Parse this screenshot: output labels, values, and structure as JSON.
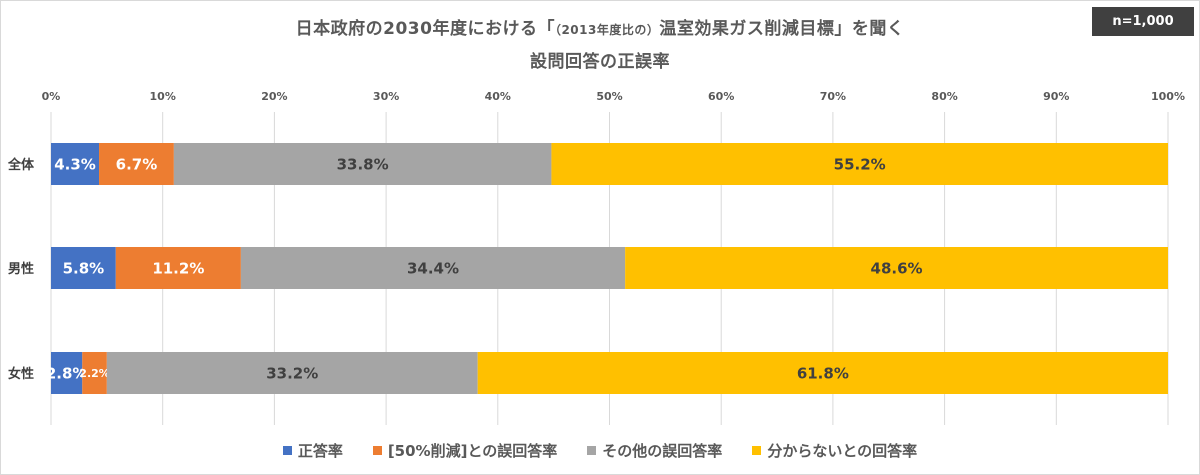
{
  "header": {
    "title_part1": "日本政府の2030年度における「",
    "title_small": "（2013年度比の）",
    "title_part2": "温室効果ガス削減目標」を聞く",
    "title_line2": "設問回答の正誤率",
    "n_badge": "n=1,000"
  },
  "colors": {
    "correct": "#4472C4",
    "fifty_percent": "#ED7D31",
    "other_wrong": "#A5A5A5",
    "dont_know": "#FFC000"
  },
  "chart_data": {
    "type": "bar",
    "orientation": "horizontal",
    "stacked": true,
    "xlim": [
      0,
      100
    ],
    "x_ticks": [
      "0%",
      "10%",
      "20%",
      "30%",
      "40%",
      "50%",
      "60%",
      "70%",
      "80%",
      "90%",
      "100%"
    ],
    "categories": [
      "全体",
      "男性",
      "女性"
    ],
    "series": [
      {
        "name": "正答率",
        "values": [
          4.3,
          5.8,
          2.8
        ],
        "labels": [
          "4.3%",
          "5.8%",
          "2.8%"
        ]
      },
      {
        "name": "[50%削減]との誤回答率",
        "values": [
          6.7,
          11.2,
          2.2
        ],
        "labels": [
          "6.7%",
          "11.2%",
          "2.2%"
        ]
      },
      {
        "name": "その他の誤回答率",
        "values": [
          33.8,
          34.4,
          33.2
        ],
        "labels": [
          "33.8%",
          "34.4%",
          "33.2%"
        ]
      },
      {
        "name": "分からないとの回答率",
        "values": [
          55.2,
          48.6,
          61.8
        ],
        "labels": [
          "55.2%",
          "48.6%",
          "61.8%"
        ]
      }
    ],
    "grid": true,
    "legend_position": "bottom"
  }
}
